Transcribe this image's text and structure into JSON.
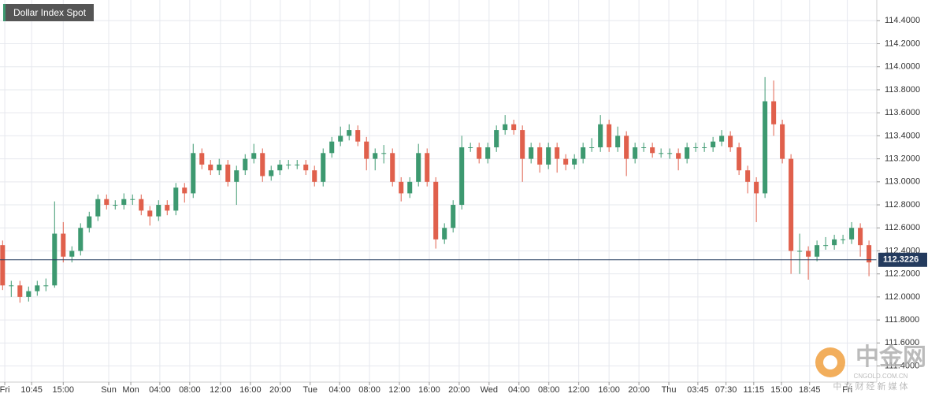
{
  "chart_data": {
    "type": "candlestick",
    "title": "Dollar Index Spot",
    "open": [
      112.45,
      112.1,
      112.1,
      112.0,
      112.05,
      112.1,
      112.1,
      112.55,
      112.35,
      112.4,
      112.6,
      112.7,
      112.85,
      112.8,
      112.8,
      112.85,
      112.85,
      112.75,
      112.7,
      112.8,
      112.75,
      112.95,
      112.9,
      113.25,
      113.15,
      113.1,
      113.15,
      113.0,
      113.1,
      113.2,
      113.25,
      113.05,
      113.1,
      113.15,
      113.15,
      113.15,
      113.1,
      113.0,
      113.25,
      113.35,
      113.4,
      113.45,
      113.35,
      113.2,
      113.25,
      113.25,
      113.0,
      112.9,
      113.0,
      113.25,
      113.0,
      112.5,
      112.6,
      112.8,
      113.3,
      113.3,
      113.2,
      113.3,
      113.45,
      113.5,
      113.45,
      113.2,
      113.3,
      113.15,
      113.3,
      113.2,
      113.15,
      113.2,
      113.3,
      113.3,
      113.5,
      113.3,
      113.4,
      113.2,
      113.3,
      113.3,
      113.25,
      113.25,
      113.25,
      113.2,
      113.3,
      113.3,
      113.3,
      113.35,
      113.4,
      113.3,
      113.1,
      113.0,
      112.9,
      113.7,
      113.5,
      113.2,
      112.4,
      112.4,
      112.35,
      112.45,
      112.45,
      112.5,
      112.5,
      112.6,
      112.45
    ],
    "high": [
      112.49,
      112.14,
      112.14,
      112.09,
      112.14,
      112.16,
      112.83,
      112.65,
      112.44,
      112.64,
      112.74,
      112.89,
      112.89,
      112.84,
      112.9,
      112.89,
      112.89,
      112.79,
      112.84,
      112.84,
      112.99,
      112.99,
      113.33,
      113.29,
      113.19,
      113.2,
      113.19,
      113.14,
      113.24,
      113.33,
      113.29,
      113.14,
      113.19,
      113.19,
      113.19,
      113.19,
      113.14,
      113.29,
      113.39,
      113.48,
      113.5,
      113.49,
      113.39,
      113.29,
      113.32,
      113.29,
      113.04,
      113.04,
      113.33,
      113.29,
      113.04,
      112.64,
      112.84,
      113.4,
      113.34,
      113.34,
      113.34,
      113.49,
      113.58,
      113.54,
      113.49,
      113.34,
      113.34,
      113.34,
      113.34,
      113.24,
      113.24,
      113.34,
      113.38,
      113.58,
      113.54,
      113.48,
      113.44,
      113.34,
      113.34,
      113.34,
      113.29,
      113.29,
      113.29,
      113.34,
      113.34,
      113.34,
      113.39,
      113.45,
      113.44,
      113.34,
      113.14,
      113.04,
      113.91,
      113.88,
      113.54,
      113.24,
      112.55,
      112.44,
      112.49,
      112.52,
      112.54,
      112.54,
      112.65,
      112.64,
      112.49
    ],
    "low": [
      112.06,
      112.0,
      111.95,
      111.96,
      112.01,
      112.05,
      112.08,
      112.3,
      112.3,
      112.36,
      112.56,
      112.66,
      112.76,
      112.76,
      112.76,
      112.8,
      112.71,
      112.62,
      112.66,
      112.71,
      112.71,
      112.82,
      112.86,
      113.11,
      113.06,
      113.06,
      112.96,
      112.8,
      113.06,
      113.16,
      113.0,
      113.01,
      113.06,
      113.11,
      113.11,
      113.06,
      112.96,
      112.96,
      113.21,
      113.31,
      113.36,
      113.31,
      113.1,
      113.1,
      113.16,
      112.96,
      112.83,
      112.86,
      112.96,
      112.96,
      112.42,
      112.46,
      112.56,
      112.76,
      113.26,
      113.16,
      113.16,
      113.26,
      113.41,
      113.41,
      113.0,
      113.16,
      113.08,
      113.11,
      113.08,
      113.1,
      113.11,
      113.16,
      113.26,
      113.26,
      113.26,
      113.26,
      113.05,
      113.16,
      113.26,
      113.21,
      113.21,
      113.2,
      113.1,
      113.16,
      113.26,
      113.26,
      113.26,
      113.31,
      113.26,
      113.06,
      112.9,
      112.65,
      112.86,
      113.4,
      113.16,
      112.2,
      112.2,
      112.15,
      112.31,
      112.41,
      112.41,
      112.46,
      112.46,
      112.35,
      112.18
    ],
    "close": [
      112.1,
      112.1,
      112.0,
      112.05,
      112.1,
      112.1,
      112.55,
      112.35,
      112.4,
      112.6,
      112.7,
      112.85,
      112.8,
      112.8,
      112.85,
      112.85,
      112.75,
      112.7,
      112.8,
      112.75,
      112.95,
      112.9,
      113.25,
      113.15,
      113.1,
      113.15,
      113.0,
      113.1,
      113.2,
      113.25,
      113.05,
      113.1,
      113.15,
      113.15,
      113.15,
      113.1,
      113.0,
      113.25,
      113.35,
      113.4,
      113.45,
      113.35,
      113.2,
      113.25,
      113.25,
      113.0,
      112.9,
      113.0,
      113.25,
      113.0,
      112.5,
      112.6,
      112.8,
      113.3,
      113.3,
      113.2,
      113.3,
      113.45,
      113.5,
      113.45,
      113.2,
      113.3,
      113.15,
      113.3,
      113.2,
      113.15,
      113.2,
      113.3,
      113.3,
      113.5,
      113.3,
      113.4,
      113.2,
      113.3,
      113.3,
      113.25,
      113.25,
      113.25,
      113.2,
      113.3,
      113.3,
      113.3,
      113.35,
      113.4,
      113.3,
      113.1,
      113.0,
      112.9,
      113.7,
      113.5,
      113.2,
      112.4,
      112.4,
      112.35,
      112.45,
      112.45,
      112.5,
      112.5,
      112.6,
      112.45,
      112.3
    ],
    "up_color": "#3d9970",
    "down_color": "#e0604c",
    "last_value": 112.3226,
    "last_color": "#243b5e",
    "xlim": [
      -0.3,
      100.9
    ],
    "xticks": [
      {
        "value": 0.25,
        "label": "Fri"
      },
      {
        "value": 3.35,
        "label": "10:45"
      },
      {
        "value": 7,
        "label": "15:00"
      },
      {
        "value": 12.25,
        "label": "Sun"
      },
      {
        "value": 14.8,
        "label": "Mon"
      },
      {
        "value": 18.15,
        "label": "04:00"
      },
      {
        "value": 21.6,
        "label": "08:00"
      },
      {
        "value": 25.15,
        "label": "12:00"
      },
      {
        "value": 28.6,
        "label": "16:00"
      },
      {
        "value": 32.05,
        "label": "20:00"
      },
      {
        "value": 35.5,
        "label": "Tue"
      },
      {
        "value": 38.9,
        "label": "04:00"
      },
      {
        "value": 42.35,
        "label": "08:00"
      },
      {
        "value": 45.8,
        "label": "12:00"
      },
      {
        "value": 49.25,
        "label": "16:00"
      },
      {
        "value": 52.7,
        "label": "20:00"
      },
      {
        "value": 56.15,
        "label": "Wed"
      },
      {
        "value": 59.6,
        "label": "04:00"
      },
      {
        "value": 63.05,
        "label": "08:00"
      },
      {
        "value": 66.5,
        "label": "12:00"
      },
      {
        "value": 70,
        "label": "16:00"
      },
      {
        "value": 73.45,
        "label": "20:00"
      },
      {
        "value": 76.9,
        "label": "Thu"
      },
      {
        "value": 80.25,
        "label": "03:45"
      },
      {
        "value": 83.5,
        "label": "07:30"
      },
      {
        "value": 86.7,
        "label": "11:15"
      },
      {
        "value": 89.9,
        "label": "15:00"
      },
      {
        "value": 93.15,
        "label": "18:45"
      },
      {
        "value": 97.5,
        "label": "Fri"
      }
    ],
    "ylim": [
      111.26,
      114.58
    ],
    "yticks": [
      {
        "value": 111.4,
        "label": "111.4000"
      },
      {
        "value": 111.6,
        "label": "111.6000"
      },
      {
        "value": 111.8,
        "label": "111.8000"
      },
      {
        "value": 112,
        "label": "112.0000"
      },
      {
        "value": 112.2,
        "label": "112.2000"
      },
      {
        "value": 112.4,
        "label": "112.4000"
      },
      {
        "value": 112.6,
        "label": "112.6000"
      },
      {
        "value": 112.8,
        "label": "112.8000"
      },
      {
        "value": 113,
        "label": "113.0000"
      },
      {
        "value": 113.2,
        "label": "113.2000"
      },
      {
        "value": 113.4,
        "label": "113.4000"
      },
      {
        "value": 113.6,
        "label": "113.6000"
      },
      {
        "value": 113.8,
        "label": "113.8000"
      },
      {
        "value": 114,
        "label": "114.0000"
      },
      {
        "value": 114.2,
        "label": "114.2000"
      },
      {
        "value": 114.4,
        "label": "114.4000"
      }
    ],
    "grid": true
  },
  "watermark": {
    "brand": "中金网",
    "domain": "CNGOLD.COM.CN",
    "slogan": "中 文 财 经 新 媒 体"
  }
}
